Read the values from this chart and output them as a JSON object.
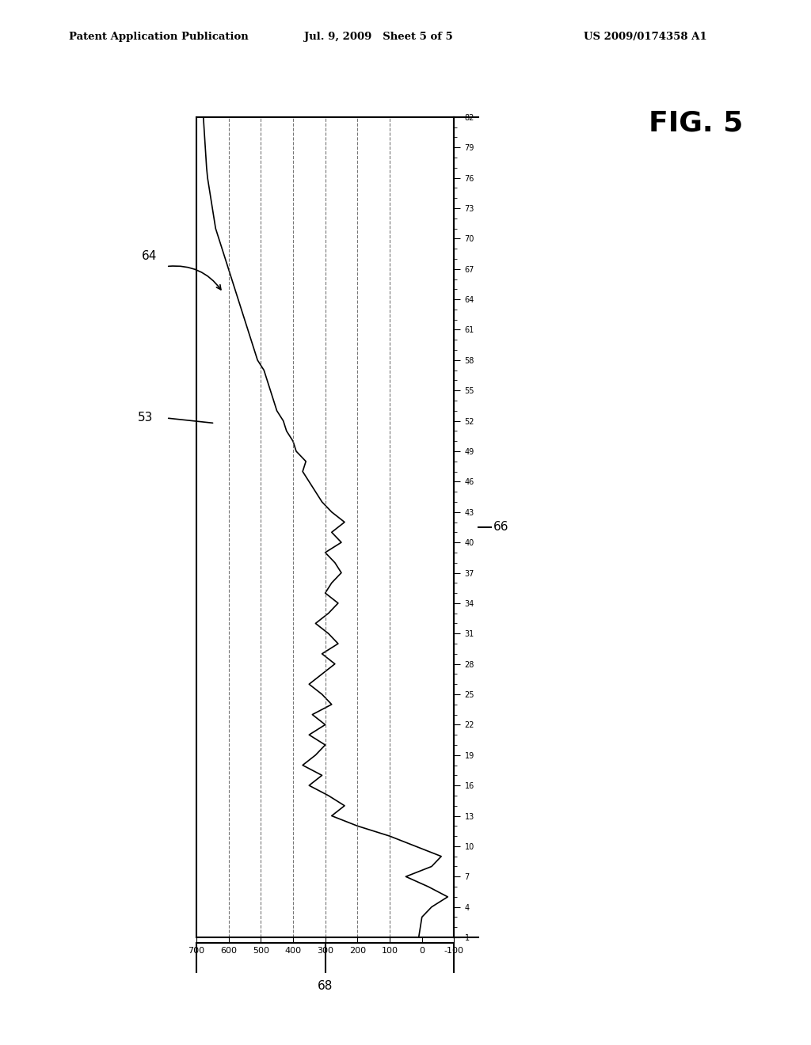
{
  "title_left": "Patent Application Publication",
  "title_mid": "Jul. 9, 2009   Sheet 5 of 5",
  "title_right": "US 2009/0174358 A1",
  "fig_label": "FIG. 5",
  "label_53": "53",
  "label_64": "64",
  "label_66": "66",
  "label_68": "68",
  "y_ticks": [
    700,
    600,
    500,
    400,
    300,
    200,
    100,
    0,
    -100
  ],
  "y_min": -100,
  "y_max": 700,
  "x_min": 1,
  "x_max": 82,
  "x_tick_labels": [
    1,
    4,
    7,
    10,
    13,
    16,
    19,
    22,
    25,
    28,
    31,
    34,
    37,
    40,
    43,
    46,
    49,
    52,
    55,
    58,
    61,
    64,
    67,
    70,
    73,
    76,
    79,
    82
  ],
  "dashed_lines_y": [
    100,
    200,
    300,
    400,
    500,
    600
  ],
  "background_color": "#ffffff",
  "line_color": "#000000",
  "signal_data_x": [
    1,
    2,
    3,
    4,
    5,
    6,
    7,
    8,
    9,
    10,
    11,
    12,
    13,
    14,
    15,
    16,
    17,
    18,
    19,
    20,
    21,
    22,
    23,
    24,
    25,
    26,
    27,
    28,
    29,
    30,
    31,
    32,
    33,
    34,
    35,
    36,
    37,
    38,
    39,
    40,
    41,
    42,
    43,
    44,
    45,
    46,
    47,
    48,
    49,
    50,
    51,
    52,
    53,
    54,
    55,
    56,
    57,
    58,
    59,
    60,
    61,
    62,
    63,
    64,
    65,
    66,
    67,
    68,
    69,
    70,
    71,
    72,
    73,
    74,
    75,
    76,
    77,
    78,
    79,
    80,
    81,
    82
  ],
  "signal_data_y": [
    10,
    5,
    0,
    -30,
    -80,
    -20,
    50,
    -30,
    -60,
    20,
    100,
    200,
    280,
    240,
    290,
    350,
    310,
    370,
    330,
    300,
    350,
    300,
    340,
    280,
    310,
    350,
    310,
    270,
    310,
    260,
    290,
    330,
    290,
    260,
    300,
    280,
    250,
    270,
    300,
    250,
    280,
    240,
    280,
    310,
    330,
    350,
    370,
    360,
    390,
    400,
    420,
    430,
    450,
    460,
    470,
    480,
    490,
    510,
    520,
    530,
    540,
    550,
    560,
    570,
    580,
    590,
    600,
    610,
    620,
    630,
    640,
    645,
    650,
    655,
    660,
    665,
    668,
    670,
    672,
    674,
    676,
    678
  ]
}
